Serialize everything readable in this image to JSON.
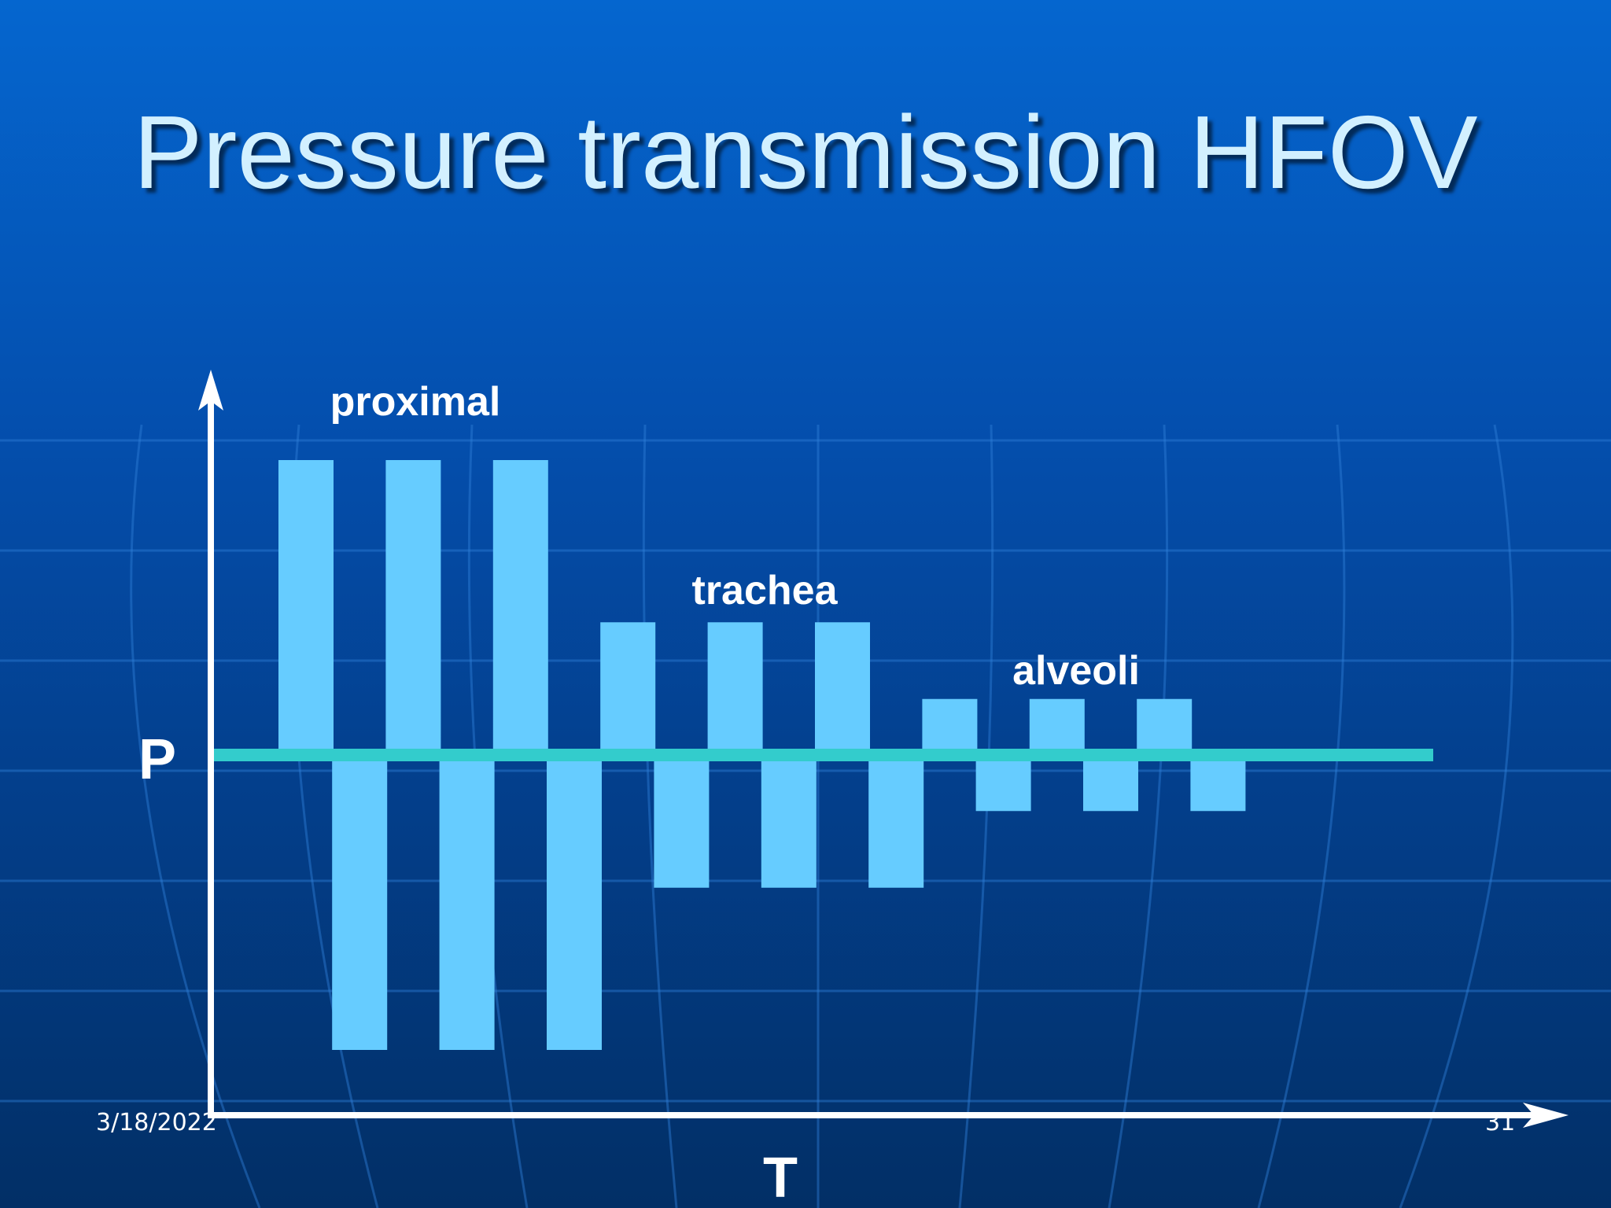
{
  "slide": {
    "title": "Pressure transmission HFOV",
    "footer_date": "3/18/2022",
    "footer_page": "31"
  },
  "diagram": {
    "axis_y_label": "P",
    "axis_x_label": "T",
    "regions": [
      {
        "label": "proximal",
        "amplitude": 1.0,
        "cycles": 3
      },
      {
        "label": "trachea",
        "amplitude": 0.45,
        "cycles": 3
      },
      {
        "label": "alveoli",
        "amplitude": 0.19,
        "cycles": 3
      }
    ],
    "colors": {
      "bars": "#66ccff",
      "mean_line": "#33cccc",
      "axes": "#ffffff"
    }
  }
}
